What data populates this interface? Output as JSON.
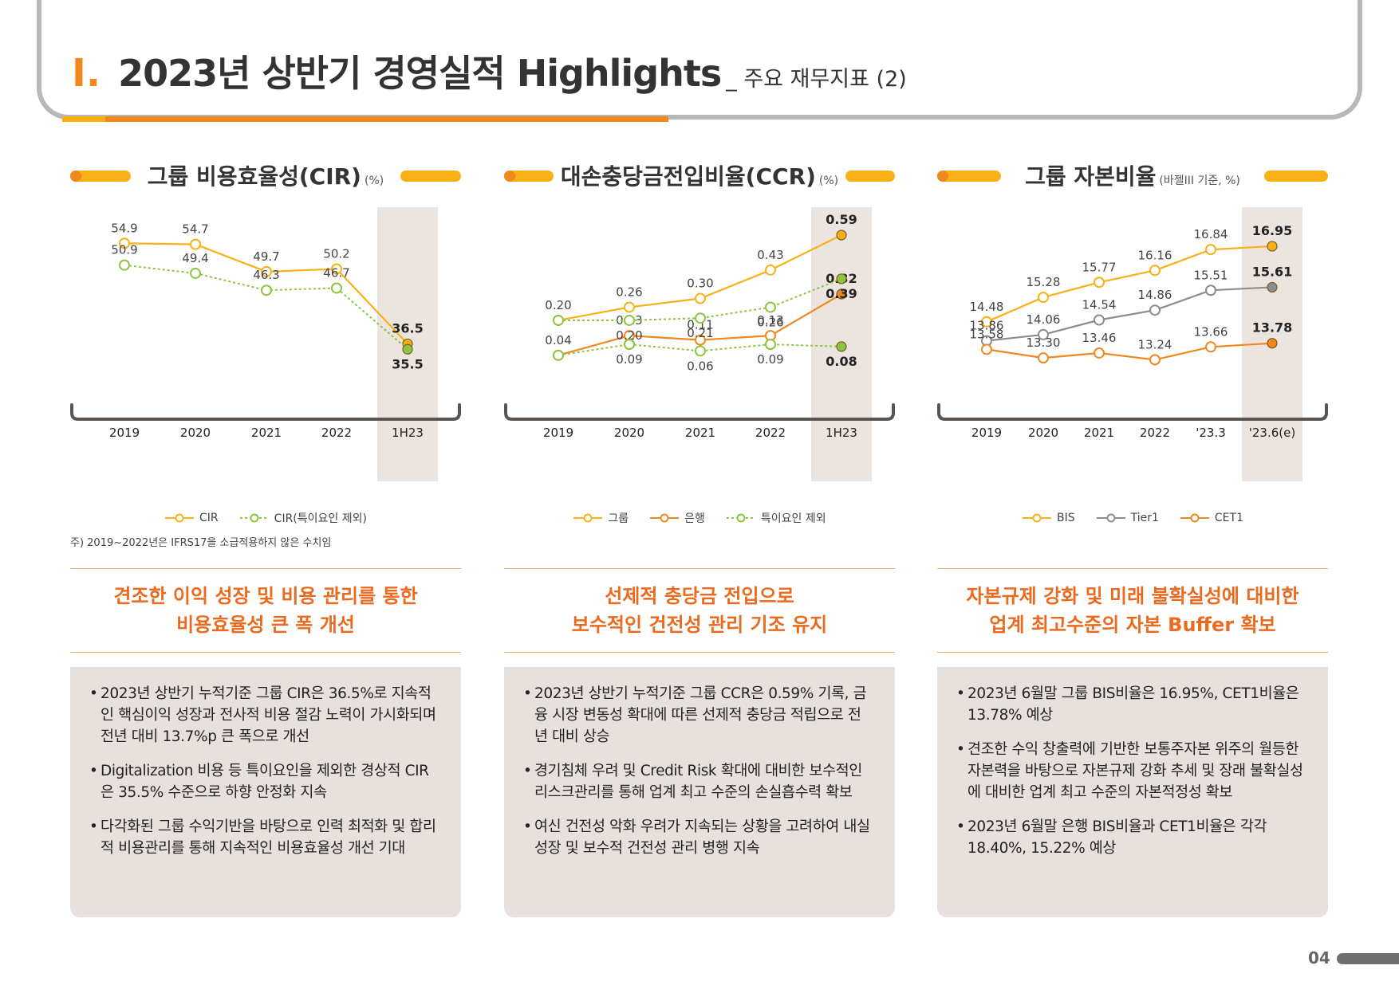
{
  "page": {
    "roman": "I.",
    "title": "2023년 상반기 경영실적 Highlights",
    "subtitle": "_ 주요 재무지표 (2)",
    "page_number": "04"
  },
  "colors": {
    "orange": "#f0871f",
    "yellow": "#f9b017",
    "dark_orange": "#ea6a1f",
    "green": "#8cc63f",
    "gray": "#8c8c8c",
    "highlight_band": "#ece4df"
  },
  "chart_data": [
    {
      "type": "line",
      "title": "그룹 비용효율성(CIR)",
      "unit": "(%)",
      "categories": [
        "2019",
        "2020",
        "2021",
        "2022",
        "1H23"
      ],
      "series": [
        {
          "name": "CIR",
          "values": [
            54.9,
            54.7,
            49.7,
            50.2,
            36.5
          ],
          "labels": [
            "54.9",
            "54.7",
            "49.7",
            "50.2",
            "36.5"
          ],
          "color": "#f9b017",
          "dashed": false
        },
        {
          "name": "CIR(특이요인 제외)",
          "values": [
            50.9,
            49.4,
            46.3,
            46.7,
            35.5
          ],
          "labels": [
            "50.9",
            "49.4",
            "46.3",
            "46.7",
            "35.5"
          ],
          "color": "#8cc63f",
          "dashed": true
        }
      ],
      "ylim": [
        30,
        58
      ],
      "highlight_last": true,
      "footnote": "주) 2019~2022년은 IFRS17을 소급적용하지 않은 수치임",
      "headline": [
        "견조한 이익 성장 및 비용 관리를 통한",
        "비용효율성 큰 폭 개선"
      ],
      "bullets": [
        "2023년 상반기 누적기준 그룹 CIR은 36.5%로 지속적인 핵심이익 성장과 전사적 비용 절감 노력이 가시화되며 전년 대비 13.7%p 큰 폭으로 개선",
        "Digitalization 비용 등 특이요인을 제외한 경상적 CIR은 35.5% 수준으로 하향 안정화 지속",
        "다각화된 그룹 수익기반을 바탕으로 인력 최적화 및 합리적 비용관리를 통해 지속적인 비용효율성 개선 기대"
      ]
    },
    {
      "type": "line",
      "title": "대손충당금전입비율(CCR)",
      "unit": "(%)",
      "categories": [
        "2019",
        "2020",
        "2021",
        "2022",
        "1H23"
      ],
      "series": [
        {
          "name": "그룹",
          "values": [
            0.2,
            0.26,
            0.3,
            0.43,
            0.59
          ],
          "labels": [
            "0.20",
            "0.26",
            "0.30",
            "0.43",
            "0.59"
          ],
          "color": "#f9b017",
          "dashed": false
        },
        {
          "name": "은행",
          "values": [
            0.04,
            0.13,
            0.11,
            0.13,
            0.32
          ],
          "labels": [
            "0.04",
            "0.13",
            "0.11",
            "0.13",
            "0.32"
          ],
          "color": "#f0871f",
          "dashed": false
        },
        {
          "name": "특이요인 제외",
          "values": [
            0.2,
            0.2,
            0.21,
            0.26,
            0.39
          ],
          "labels": [
            "",
            "0.20",
            "0.21",
            "0.26",
            "0.39"
          ],
          "color": "#8cc63f",
          "dashed": true
        },
        {
          "name": "",
          "values": [
            0.04,
            0.09,
            0.06,
            0.09,
            0.08
          ],
          "labels": [
            "",
            "0.09",
            "0.06",
            "0.09",
            "0.08"
          ],
          "color": "#8cc63f",
          "dashed": true,
          "legend": false
        }
      ],
      "ylim": [
        -0.07,
        0.63
      ],
      "highlight_last": true,
      "headline": [
        "선제적 충당금 전입으로",
        "보수적인 건전성 관리 기조 유지"
      ],
      "bullets": [
        "2023년 상반기 누적기준 그룹 CCR은 0.59% 기록, 금융 시장 변동성 확대에 따른 선제적 충당금 적립으로 전년 대비 상승",
        "경기침체 우려 및 Credit Risk 확대에 대비한 보수적인 리스크관리를 통해 업계 최고 수준의 손실흡수력 확보",
        "여신 건전성 악화 우려가 지속되는 상황을 고려하여 내실 성장 및 보수적 건전성 관리 병행 지속"
      ]
    },
    {
      "type": "line",
      "title": "그룹 자본비율",
      "unit": "(바젤III 기준, %)",
      "categories": [
        "2019",
        "2020",
        "2021",
        "2022",
        "'23.3",
        "'23.6(e)"
      ],
      "series": [
        {
          "name": "BIS",
          "values": [
            14.48,
            15.28,
            15.77,
            16.16,
            16.84,
            16.95
          ],
          "labels": [
            "14.48",
            "15.28",
            "15.77",
            "16.16",
            "16.84",
            "16.95"
          ],
          "color": "#f9b017",
          "dashed": false
        },
        {
          "name": "Tier1",
          "values": [
            13.86,
            14.06,
            14.54,
            14.86,
            15.51,
            15.61
          ],
          "labels": [
            "13.86",
            "14.06",
            "14.54",
            "14.86",
            "15.51",
            "15.61"
          ],
          "color": "#8c8c8c",
          "dashed": false
        },
        {
          "name": "CET1",
          "values": [
            13.58,
            13.3,
            13.46,
            13.24,
            13.66,
            13.78
          ],
          "labels": [
            "13.58",
            "13.30",
            "13.46",
            "13.24",
            "13.66",
            "13.78"
          ],
          "color": "#f0871f",
          "dashed": false
        }
      ],
      "ylim": [
        12.6,
        17.6
      ],
      "highlight_last": true,
      "headline": [
        "자본규제 강화 및 미래 불확실성에 대비한",
        "업계 최고수준의 자본 Buffer 확보"
      ],
      "bullets": [
        "2023년 6월말 그룹 BIS비율은 16.95%, CET1비율은 13.78% 예상",
        "견조한 수익 창출력에 기반한 보통주자본 위주의 월등한 자본력을 바탕으로 자본규제 강화 추세 및 장래 불확실성에 대비한 업계 최고 수준의 자본적정성 확보",
        "2023년 6월말 은행 BIS비율과 CET1비율은 각각 18.40%, 15.22% 예상"
      ]
    }
  ]
}
